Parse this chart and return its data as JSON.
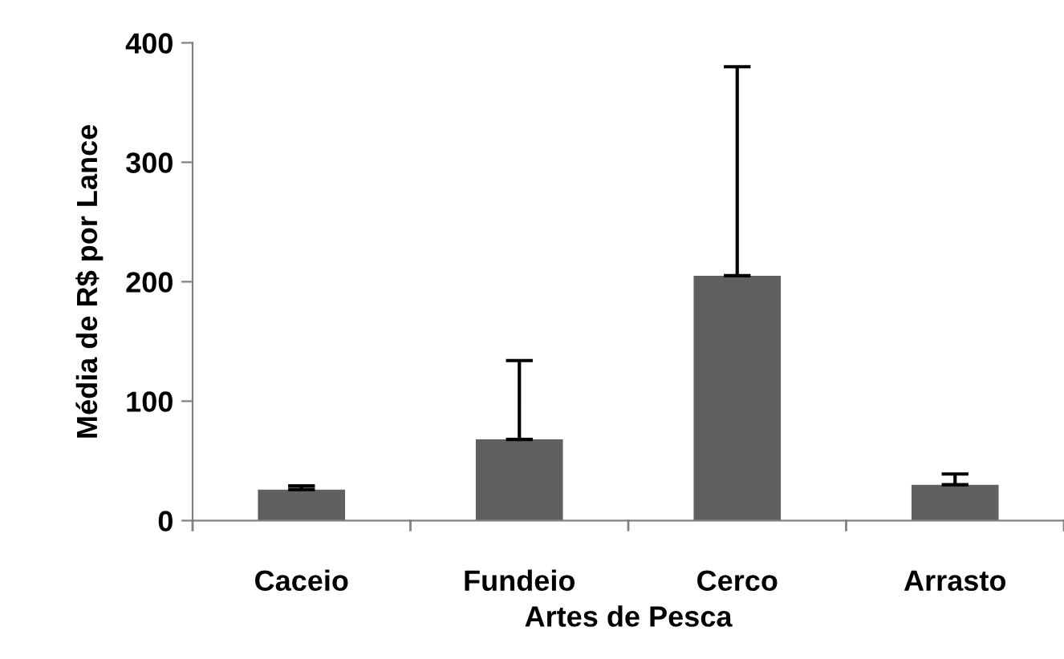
{
  "chart_data": {
    "type": "bar",
    "xlabel": "Artes de Pesca",
    "ylabel": "Média de R$ por Lance",
    "categories": [
      "Caceio",
      "Fundeio",
      "Cerco",
      "Arrasto"
    ],
    "values": [
      26,
      68,
      205,
      30
    ],
    "errors": [
      [
        26,
        29
      ],
      [
        68,
        134
      ],
      [
        205,
        380
      ],
      [
        30,
        39
      ]
    ],
    "color": "#606060",
    "ylim": [
      0,
      400
    ],
    "yticks": [
      0,
      100,
      200,
      300,
      400
    ],
    "grid": false
  }
}
